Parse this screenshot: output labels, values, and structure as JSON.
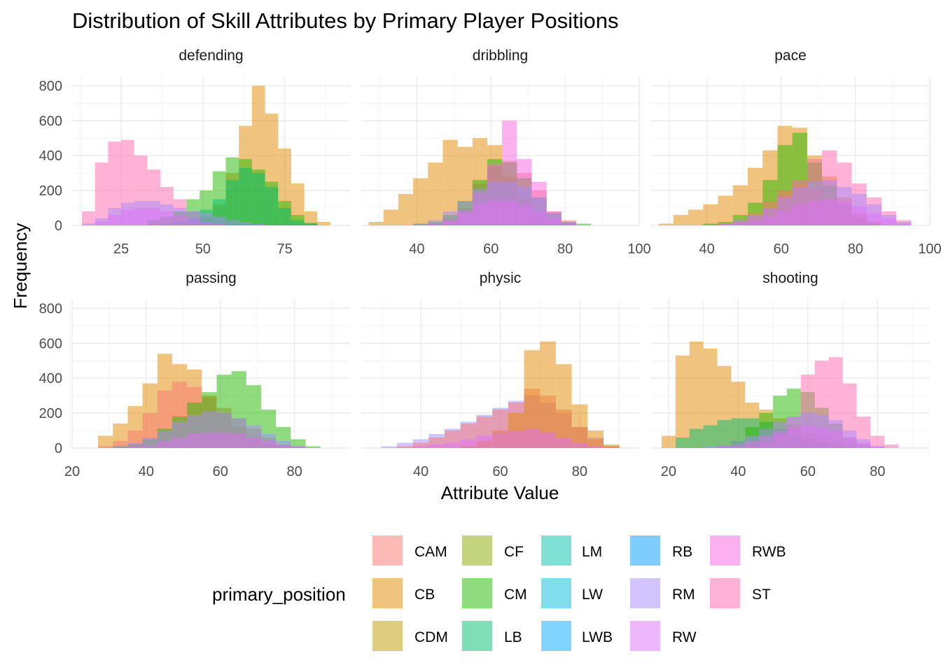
{
  "chart_data": {
    "type": "histogram",
    "title": "Distribution of Skill Attributes by Primary Player Positions",
    "xlabel": "Attribute Value",
    "ylabel": "Frequency",
    "ylim": [
      0,
      850
    ],
    "y_ticks": [
      0,
      200,
      400,
      600,
      800
    ],
    "legend": {
      "title": "primary_position",
      "placement": "bottom",
      "entries": [
        {
          "name": "CAM",
          "color": "#F8766D"
        },
        {
          "name": "CB",
          "color": "#E18A00"
        },
        {
          "name": "CDM",
          "color": "#BE9C00"
        },
        {
          "name": "CF",
          "color": "#8CAB00"
        },
        {
          "name": "CM",
          "color": "#24B700"
        },
        {
          "name": "LB",
          "color": "#00BE70"
        },
        {
          "name": "LM",
          "color": "#00C1AB"
        },
        {
          "name": "LW",
          "color": "#00BBDA"
        },
        {
          "name": "LWB",
          "color": "#00ACFC"
        },
        {
          "name": "RB",
          "color": "#009AFF"
        },
        {
          "name": "RM",
          "color": "#A58AFF"
        },
        {
          "name": "RW",
          "color": "#DF70F8"
        },
        {
          "name": "RWB",
          "color": "#F763E0"
        },
        {
          "name": "ST",
          "color": "#FF65AC"
        }
      ]
    },
    "panels": [
      {
        "name": "defending",
        "xlim": [
          10,
          95
        ],
        "x_ticks": [
          25,
          50,
          75
        ],
        "bins": [
          15,
          19,
          23,
          27,
          31,
          35,
          39,
          43,
          47,
          51,
          55,
          59,
          63,
          67,
          71,
          75,
          79,
          83,
          87,
          91
        ],
        "series": [
          {
            "name": "ST",
            "values": [
              80,
              360,
              480,
              490,
              400,
              320,
              220,
              150,
              80,
              30,
              10,
              0,
              0,
              0,
              0,
              0,
              0,
              0,
              0,
              0
            ]
          },
          {
            "name": "CB",
            "values": [
              0,
              0,
              0,
              0,
              0,
              0,
              0,
              0,
              10,
              50,
              120,
              300,
              570,
              800,
              640,
              440,
              240,
              80,
              20,
              0
            ]
          },
          {
            "name": "CM",
            "values": [
              0,
              0,
              0,
              0,
              0,
              30,
              50,
              80,
              150,
              200,
              310,
              390,
              380,
              320,
              250,
              140,
              60,
              15,
              0,
              0
            ]
          },
          {
            "name": "LB",
            "values": [
              0,
              0,
              0,
              0,
              0,
              0,
              10,
              20,
              40,
              90,
              150,
              260,
              330,
              300,
              220,
              100,
              30,
              10,
              0,
              0
            ]
          },
          {
            "name": "RM",
            "values": [
              10,
              40,
              100,
              130,
              140,
              140,
              120,
              100,
              80,
              70,
              50,
              30,
              20,
              10,
              0,
              0,
              0,
              0,
              0,
              0
            ]
          },
          {
            "name": "RW",
            "values": [
              0,
              20,
              60,
              90,
              100,
              100,
              80,
              60,
              40,
              20,
              10,
              0,
              0,
              0,
              0,
              0,
              0,
              0,
              0,
              0
            ]
          }
        ]
      },
      {
        "name": "dribbling",
        "xlim": [
          25,
          100
        ],
        "x_ticks": [
          40,
          60,
          80,
          100
        ],
        "bins": [
          29,
          33,
          37,
          41,
          45,
          49,
          53,
          57,
          61,
          65,
          69,
          73,
          77,
          81,
          85,
          89
        ],
        "series": [
          {
            "name": "CB",
            "values": [
              20,
              90,
              180,
              270,
              360,
              490,
              450,
              500,
              460,
              280,
              150,
              60,
              20,
              0,
              0,
              0
            ]
          },
          {
            "name": "CAM",
            "values": [
              0,
              0,
              0,
              0,
              10,
              40,
              100,
              240,
              340,
              370,
              300,
              200,
              80,
              30,
              0,
              0
            ]
          },
          {
            "name": "CM",
            "values": [
              0,
              0,
              0,
              10,
              20,
              60,
              140,
              260,
              380,
              360,
              270,
              160,
              70,
              20,
              10,
              0
            ]
          },
          {
            "name": "RWB",
            "values": [
              0,
              0,
              0,
              0,
              0,
              20,
              80,
              190,
              350,
              600,
              380,
              250,
              80,
              20,
              0,
              0
            ]
          },
          {
            "name": "RM",
            "values": [
              0,
              0,
              0,
              10,
              30,
              80,
              140,
              210,
              250,
              250,
              220,
              160,
              70,
              20,
              0,
              0
            ]
          },
          {
            "name": "RW",
            "values": [
              0,
              0,
              0,
              0,
              10,
              30,
              70,
              120,
              140,
              140,
              120,
              80,
              40,
              10,
              0,
              0
            ]
          }
        ]
      },
      {
        "name": "pace",
        "xlim": [
          25,
          100
        ],
        "x_ticks": [
          40,
          60,
          80,
          100
        ],
        "bins": [
          29,
          33,
          37,
          41,
          45,
          49,
          53,
          57,
          61,
          65,
          69,
          73,
          77,
          81,
          85,
          89,
          93,
          97
        ],
        "series": [
          {
            "name": "CB",
            "values": [
              10,
              60,
              90,
              120,
              170,
              230,
              330,
              430,
              570,
              560,
              400,
              280,
              160,
              70,
              20,
              0,
              0,
              0
            ]
          },
          {
            "name": "CM",
            "values": [
              0,
              0,
              0,
              10,
              20,
              60,
              130,
              260,
              460,
              530,
              360,
              230,
              120,
              40,
              10,
              0,
              0,
              0
            ]
          },
          {
            "name": "ST",
            "values": [
              0,
              0,
              0,
              0,
              10,
              20,
              50,
              100,
              170,
              260,
              380,
              430,
              360,
              240,
              160,
              80,
              30,
              0
            ]
          },
          {
            "name": "CAM",
            "values": [
              0,
              0,
              0,
              0,
              10,
              30,
              70,
              140,
              200,
              230,
              200,
              150,
              100,
              50,
              20,
              0,
              0,
              0
            ]
          },
          {
            "name": "RM",
            "values": [
              0,
              0,
              0,
              0,
              10,
              30,
              60,
              100,
              160,
              220,
              250,
              260,
              220,
              180,
              120,
              60,
              20,
              0
            ]
          },
          {
            "name": "RW",
            "values": [
              0,
              0,
              0,
              0,
              0,
              10,
              20,
              50,
              80,
              120,
              140,
              150,
              140,
              110,
              70,
              40,
              10,
              0
            ]
          }
        ]
      },
      {
        "name": "passing",
        "xlim": [
          20,
          95
        ],
        "x_ticks": [
          20,
          40,
          60,
          80
        ],
        "bins": [
          29,
          33,
          37,
          41,
          45,
          49,
          53,
          57,
          61,
          65,
          69,
          73,
          77,
          81,
          85,
          89
        ],
        "series": [
          {
            "name": "CB",
            "values": [
              70,
              140,
              240,
              370,
              540,
              480,
              450,
              300,
              200,
              120,
              60,
              20,
              10,
              0,
              0,
              0
            ]
          },
          {
            "name": "CAM",
            "values": [
              10,
              40,
              100,
              200,
              330,
              380,
              350,
              290,
              230,
              170,
              110,
              60,
              20,
              10,
              0,
              0
            ]
          },
          {
            "name": "CM",
            "values": [
              0,
              10,
              20,
              50,
              110,
              180,
              260,
              320,
              420,
              440,
              360,
              220,
              120,
              50,
              10,
              0
            ]
          },
          {
            "name": "RM",
            "values": [
              0,
              10,
              30,
              60,
              100,
              150,
              190,
              210,
              200,
              170,
              130,
              80,
              40,
              10,
              0,
              0
            ]
          },
          {
            "name": "RW",
            "values": [
              0,
              0,
              10,
              20,
              40,
              60,
              80,
              90,
              90,
              80,
              60,
              40,
              20,
              10,
              0,
              0
            ]
          }
        ]
      },
      {
        "name": "physic",
        "xlim": [
          25,
          95
        ],
        "x_ticks": [
          40,
          60,
          80
        ],
        "bins": [
          32,
          36,
          40,
          44,
          48,
          52,
          56,
          60,
          64,
          68,
          72,
          76,
          80,
          84,
          88
        ],
        "series": [
          {
            "name": "RM",
            "values": [
              10,
              30,
              50,
              80,
              110,
              150,
              190,
              230,
              270,
              300,
              260,
              200,
              120,
              60,
              10
            ]
          },
          {
            "name": "CAM",
            "values": [
              0,
              10,
              30,
              60,
              100,
              140,
              180,
              220,
              260,
              340,
              300,
              220,
              120,
              50,
              10
            ]
          },
          {
            "name": "CB",
            "values": [
              0,
              0,
              0,
              0,
              0,
              10,
              40,
              100,
              200,
              560,
              610,
              480,
              250,
              100,
              20
            ]
          },
          {
            "name": "RW",
            "values": [
              0,
              0,
              10,
              20,
              30,
              50,
              70,
              90,
              100,
              110,
              90,
              60,
              30,
              10,
              0
            ]
          }
        ]
      },
      {
        "name": "shooting",
        "xlim": [
          15,
          95
        ],
        "x_ticks": [
          20,
          40,
          60,
          80
        ],
        "bins": [
          20,
          24,
          28,
          32,
          36,
          40,
          44,
          48,
          52,
          56,
          60,
          64,
          68,
          72,
          76,
          80,
          84,
          88
        ],
        "series": [
          {
            "name": "CB",
            "values": [
              70,
              530,
              610,
              570,
              470,
              380,
              260,
              220,
              170,
              130,
              90,
              60,
              30,
              10,
              0,
              0,
              0,
              0
            ]
          },
          {
            "name": "LB",
            "values": [
              0,
              60,
              110,
              130,
              160,
              170,
              170,
              150,
              110,
              80,
              50,
              30,
              10,
              0,
              0,
              0,
              0,
              0
            ]
          },
          {
            "name": "CM",
            "values": [
              0,
              0,
              0,
              0,
              10,
              40,
              120,
              200,
              300,
              340,
              320,
              230,
              140,
              60,
              20,
              0,
              0,
              0
            ]
          },
          {
            "name": "ST",
            "values": [
              0,
              0,
              0,
              0,
              0,
              0,
              10,
              30,
              80,
              180,
              420,
              500,
              520,
              370,
              180,
              70,
              20,
              0
            ]
          },
          {
            "name": "RM",
            "values": [
              0,
              0,
              0,
              10,
              20,
              40,
              70,
              110,
              150,
              180,
              200,
              190,
              160,
              100,
              50,
              10,
              0,
              0
            ]
          },
          {
            "name": "RW",
            "values": [
              0,
              0,
              0,
              0,
              10,
              20,
              40,
              70,
              100,
              120,
              130,
              120,
              100,
              60,
              30,
              10,
              0,
              0
            ]
          }
        ]
      }
    ]
  }
}
